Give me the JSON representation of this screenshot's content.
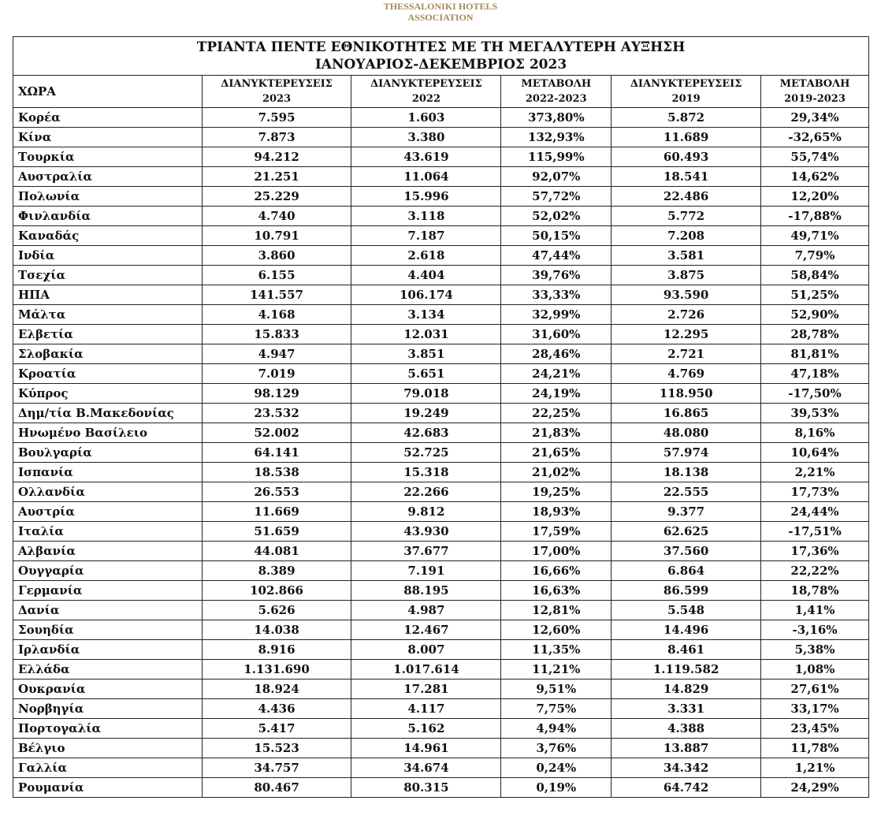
{
  "logo": {
    "line1": "THESSALONIKI HOTELS",
    "line2": "ASSOCIATION"
  },
  "title": {
    "line1": "ΤΡΙΑΝΤΑ ΠΕΝΤΕ ΕΘΝΙΚΟΤΗΤΕΣ ΜΕ ΤΗ ΜΕΓΑΛΥΤΕΡΗ ΑΥΞΗΣΗ",
    "line2": "ΙΑΝΟΥΑΡΙΟΣ-ΔΕΚΕΜΒΡΙΟΣ 2023"
  },
  "headers": [
    {
      "a": "ΧΩΡΑ",
      "b": ""
    },
    {
      "a": "ΔΙΑΝΥΚΤΕΡΕΥΣΕΙΣ",
      "b": "2023"
    },
    {
      "a": "ΔΙΑΝΥΚΤΕΡΕΥΣΕΙΣ",
      "b": "2022"
    },
    {
      "a": "ΜΕΤΑΒΟΛΗ",
      "b": "2022-2023"
    },
    {
      "a": "ΔΙΑΝΥΚΤΕΡΕΥΣΕΙΣ",
      "b": "2019"
    },
    {
      "a": "ΜΕΤΑΒΟΛΗ",
      "b": "2019-2023"
    }
  ],
  "rows": [
    [
      "Κορέα",
      "7.595",
      "1.603",
      "373,80%",
      "5.872",
      "29,34%"
    ],
    [
      "Κίνα",
      "7.873",
      "3.380",
      "132,93%",
      "11.689",
      "-32,65%"
    ],
    [
      "Τουρκία",
      "94.212",
      "43.619",
      "115,99%",
      "60.493",
      "55,74%"
    ],
    [
      "Αυστραλία",
      "21.251",
      "11.064",
      "92,07%",
      "18.541",
      "14,62%"
    ],
    [
      "Πολωνία",
      "25.229",
      "15.996",
      "57,72%",
      "22.486",
      "12,20%"
    ],
    [
      "Φινλανδία",
      "4.740",
      "3.118",
      "52,02%",
      "5.772",
      "-17,88%"
    ],
    [
      "Καναδάς",
      "10.791",
      "7.187",
      "50,15%",
      "7.208",
      "49,71%"
    ],
    [
      "Ινδία",
      "3.860",
      "2.618",
      "47,44%",
      "3.581",
      "7,79%"
    ],
    [
      "Τσεχία",
      "6.155",
      "4.404",
      "39,76%",
      "3.875",
      "58,84%"
    ],
    [
      "ΗΠΑ",
      "141.557",
      "106.174",
      "33,33%",
      "93.590",
      "51,25%"
    ],
    [
      "Μάλτα",
      "4.168",
      "3.134",
      "32,99%",
      "2.726",
      "52,90%"
    ],
    [
      "Ελβετία",
      "15.833",
      "12.031",
      "31,60%",
      "12.295",
      "28,78%"
    ],
    [
      "Σλοβακία",
      "4.947",
      "3.851",
      "28,46%",
      "2.721",
      "81,81%"
    ],
    [
      "Κροατία",
      "7.019",
      "5.651",
      "24,21%",
      "4.769",
      "47,18%"
    ],
    [
      "Κύπρος",
      "98.129",
      "79.018",
      "24,19%",
      "118.950",
      "-17,50%"
    ],
    [
      "Δημ/τία Β.Μακεδονίας",
      "23.532",
      "19.249",
      "22,25%",
      "16.865",
      "39,53%"
    ],
    [
      "Ηνωμένο Βασίλειο",
      "52.002",
      "42.683",
      "21,83%",
      "48.080",
      "8,16%"
    ],
    [
      "Βουλγαρία",
      "64.141",
      "52.725",
      "21,65%",
      "57.974",
      "10,64%"
    ],
    [
      "Ισπανία",
      "18.538",
      "15.318",
      "21,02%",
      "18.138",
      "2,21%"
    ],
    [
      "Ολλανδία",
      "26.553",
      "22.266",
      "19,25%",
      "22.555",
      "17,73%"
    ],
    [
      "Αυστρία",
      "11.669",
      "9.812",
      "18,93%",
      "9.377",
      "24,44%"
    ],
    [
      "Ιταλία",
      "51.659",
      "43.930",
      "17,59%",
      "62.625",
      "-17,51%"
    ],
    [
      "Αλβανία",
      "44.081",
      "37.677",
      "17,00%",
      "37.560",
      "17,36%"
    ],
    [
      "Ουγγαρία",
      "8.389",
      "7.191",
      "16,66%",
      "6.864",
      "22,22%"
    ],
    [
      "Γερμανία",
      "102.866",
      "88.195",
      "16,63%",
      "86.599",
      "18,78%"
    ],
    [
      "Δανία",
      "5.626",
      "4.987",
      "12,81%",
      "5.548",
      "1,41%"
    ],
    [
      "Σουηδία",
      "14.038",
      "12.467",
      "12,60%",
      "14.496",
      "-3,16%"
    ],
    [
      "Ιρλανδία",
      "8.916",
      "8.007",
      "11,35%",
      "8.461",
      "5,38%"
    ],
    [
      "Ελλάδα",
      "1.131.690",
      "1.017.614",
      "11,21%",
      "1.119.582",
      "1,08%"
    ],
    [
      "Ουκρανία",
      "18.924",
      "17.281",
      "9,51%",
      "14.829",
      "27,61%"
    ],
    [
      "Νορβηγία",
      "4.436",
      "4.117",
      "7,75%",
      "3.331",
      "33,17%"
    ],
    [
      "Πορτογαλία",
      "5.417",
      "5.162",
      "4,94%",
      "4.388",
      "23,45%"
    ],
    [
      "Βέλγιο",
      "15.523",
      "14.961",
      "3,76%",
      "13.887",
      "11,78%"
    ],
    [
      "Γαλλία",
      "34.757",
      "34.674",
      "0,24%",
      "34.342",
      "1,21%"
    ],
    [
      "Ρουμανία",
      "80.467",
      "80.315",
      "0,19%",
      "64.742",
      "24,29%"
    ]
  ]
}
